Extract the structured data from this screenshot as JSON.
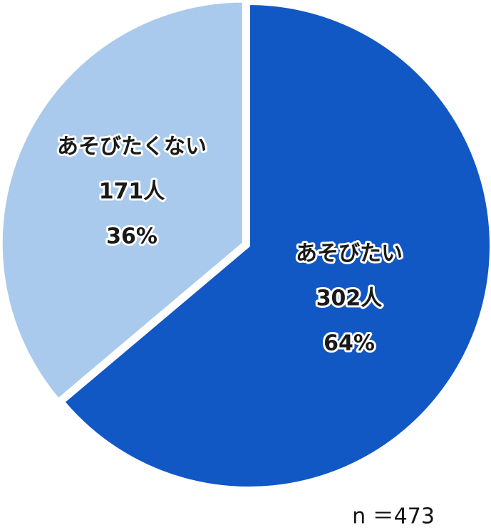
{
  "chart_data": {
    "type": "pie",
    "categories": [
      "あそびたい",
      "あそびたくない"
    ],
    "values": [
      302,
      171
    ],
    "value_labels": [
      "302人",
      "171人"
    ],
    "percent_labels": [
      "64%",
      "36%"
    ],
    "colors": [
      "#1158c4",
      "#a9caec"
    ],
    "note": "n ＝473"
  }
}
